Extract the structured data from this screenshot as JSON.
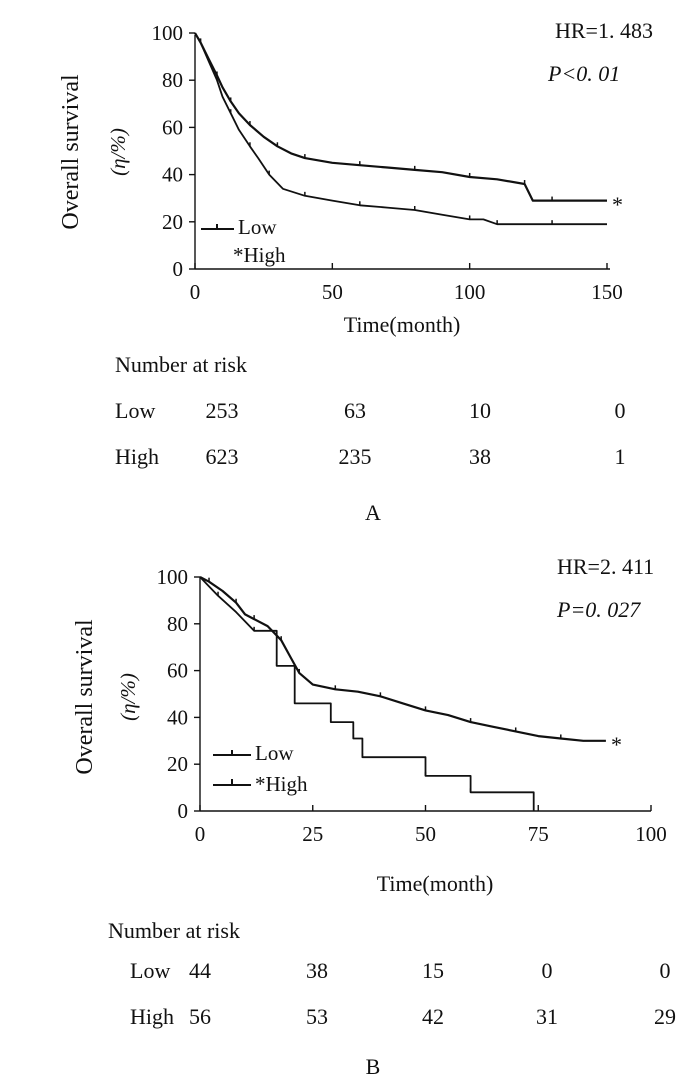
{
  "chart_data": [
    {
      "panel_label": "A",
      "type": "line",
      "ylabel_line1": "Overall survival",
      "ylabel_line2": "(η/%)",
      "xlabel": "Time(month)",
      "xlim": [
        0,
        150
      ],
      "ylim": [
        0,
        100
      ],
      "xticks": [
        0,
        50,
        100,
        150
      ],
      "yticks": [
        0,
        20,
        40,
        60,
        80,
        100
      ],
      "hr_text": "HR=1. 483",
      "p_text": "P<0. 01",
      "legend": [
        "Low",
        "*High"
      ],
      "star_marker": "*",
      "series": [
        {
          "name": "Low",
          "x": [
            0,
            2,
            5,
            8,
            10,
            13,
            16,
            20,
            23,
            27,
            32,
            40,
            50,
            60,
            70,
            80,
            90,
            100,
            105,
            110,
            120,
            130,
            140,
            150
          ],
          "y": [
            100,
            96,
            88,
            80,
            73,
            66,
            59,
            52,
            47,
            40,
            34,
            31,
            29,
            27,
            26,
            25,
            23,
            21,
            21,
            19,
            19,
            19,
            19,
            19
          ]
        },
        {
          "name": "*High",
          "x": [
            0,
            2,
            5,
            8,
            10,
            13,
            16,
            20,
            25,
            30,
            35,
            40,
            50,
            60,
            70,
            80,
            90,
            100,
            110,
            120,
            123,
            130,
            140,
            150
          ],
          "y": [
            100,
            96,
            89,
            82,
            77,
            71,
            66,
            61,
            56,
            52,
            49,
            47,
            45,
            44,
            43,
            42,
            41,
            39,
            38,
            36,
            29,
            29,
            29,
            29
          ]
        }
      ],
      "risk_table": {
        "title": "Number at risk",
        "rows": [
          {
            "label": "Low",
            "values": [
              "253",
              "63",
              "10",
              "0"
            ]
          },
          {
            "label": "High",
            "values": [
              "623",
              "235",
              "38",
              "1"
            ]
          }
        ]
      }
    },
    {
      "panel_label": "B",
      "type": "line",
      "ylabel_line1": "Overall survival",
      "ylabel_line2": "(η/%)",
      "xlabel": "Time(month)",
      "xlim": [
        0,
        100
      ],
      "ylim": [
        0,
        100
      ],
      "xticks": [
        0,
        25,
        50,
        75,
        100
      ],
      "yticks": [
        0,
        20,
        40,
        60,
        80,
        100
      ],
      "hr_text": "HR=2. 411",
      "p_text": "P=0. 027",
      "legend": [
        "Low",
        "*High"
      ],
      "star_marker": "*",
      "series": [
        {
          "name": "Low",
          "x": [
            0,
            4,
            8,
            12,
            17,
            17,
            21,
            21,
            29,
            29,
            34,
            34,
            36,
            36,
            50,
            50,
            60,
            60,
            74,
            74
          ],
          "y": [
            100,
            92,
            85,
            77,
            77,
            62,
            62,
            46,
            46,
            38,
            38,
            31,
            31,
            23,
            23,
            15,
            15,
            8,
            8,
            0
          ]
        },
        {
          "name": "*High",
          "x": [
            0,
            2,
            5,
            8,
            10,
            12,
            15,
            18,
            20,
            22,
            25,
            30,
            35,
            40,
            45,
            50,
            55,
            60,
            65,
            70,
            75,
            80,
            85,
            90
          ],
          "y": [
            100,
            98,
            94,
            89,
            84,
            82,
            79,
            73,
            66,
            59,
            54,
            52,
            51,
            49,
            46,
            43,
            41,
            38,
            36,
            34,
            32,
            31,
            30,
            30
          ]
        }
      ],
      "risk_table": {
        "title": "Number at risk",
        "rows": [
          {
            "label": "Low",
            "values": [
              "44",
              "38",
              "15",
              "0",
              "0"
            ]
          },
          {
            "label": "High",
            "values": [
              "56",
              "53",
              "42",
              "31",
              "29"
            ]
          }
        ]
      }
    }
  ]
}
